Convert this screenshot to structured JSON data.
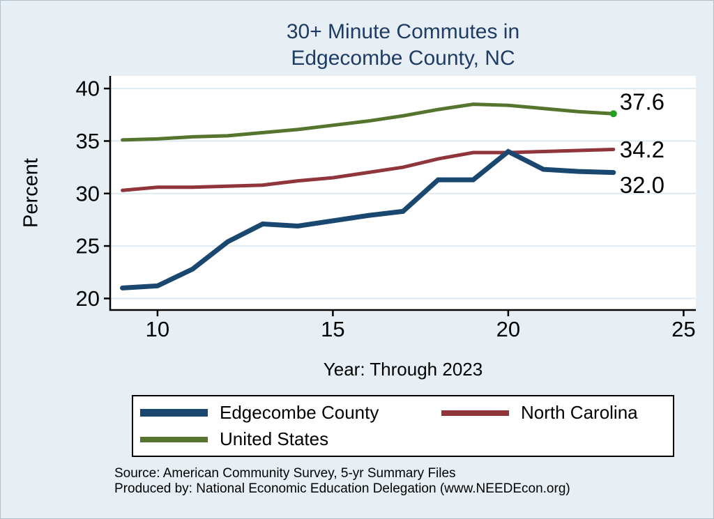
{
  "title": {
    "line1": "30+ Minute Commutes in",
    "line2": "Edgecombe County, NC"
  },
  "legend": {
    "items": [
      {
        "label": "Edgecombe County",
        "color": "#1a476f"
      },
      {
        "label": "North Carolina",
        "color": "#90353b"
      },
      {
        "label": "United States",
        "color": "#55752f"
      }
    ]
  },
  "footer": {
    "source_line": "Source: American Community Survey, 5-yr Summary Files",
    "produced_line": "Produced by: National Economic Education Delegation (www.NEEDEcon.org)"
  },
  "chart_data": {
    "type": "line",
    "title": "30+ Minute Commutes in Edgecombe County, NC",
    "xlabel": "Year: Through 2023",
    "ylabel": "Percent",
    "x": [
      9,
      10,
      11,
      12,
      13,
      14,
      15,
      16,
      17,
      18,
      19,
      20,
      21,
      22,
      23
    ],
    "series": [
      {
        "name": "Edgecombe County",
        "color": "#1a476f",
        "line_width": 7,
        "values": [
          21.0,
          21.2,
          22.8,
          25.4,
          27.1,
          26.9,
          27.4,
          27.9,
          28.3,
          31.3,
          31.3,
          34.0,
          32.3,
          32.1,
          32.0
        ]
      },
      {
        "name": "North Carolina",
        "color": "#90353b",
        "line_width": 5,
        "values": [
          30.3,
          30.6,
          30.6,
          30.7,
          30.8,
          31.2,
          31.5,
          32.0,
          32.5,
          33.3,
          33.9,
          33.9,
          34.0,
          34.1,
          34.2
        ]
      },
      {
        "name": "United States",
        "color": "#55752f",
        "line_width": 5,
        "end_marker_color": "#21a121",
        "values": [
          35.1,
          35.2,
          35.4,
          35.5,
          35.8,
          36.1,
          36.5,
          36.9,
          37.4,
          38.0,
          38.5,
          38.4,
          38.1,
          37.8,
          37.6
        ]
      }
    ],
    "x_ticks": [
      10,
      15,
      20,
      25
    ],
    "y_ticks": [
      20,
      25,
      30,
      35,
      40
    ],
    "xlim": [
      8.65,
      25.35
    ],
    "ylim": [
      18.9,
      41.2
    ],
    "grid": "horizontal-light",
    "legend_position": "bottom-box",
    "end_labels": [
      {
        "text": "37.6",
        "series": "United States"
      },
      {
        "text": "34.2",
        "series": "North Carolina"
      },
      {
        "text": "32.0",
        "series": "Edgecombe County"
      }
    ]
  }
}
